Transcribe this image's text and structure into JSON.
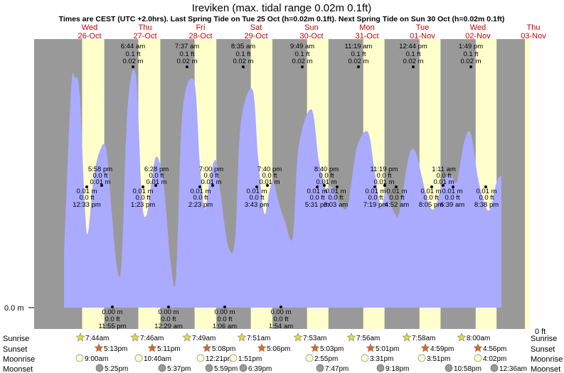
{
  "title": "Ireviken (max. tidal range 0.02m 0.1ft)",
  "subtitle": "Times are CEST (UTC +2.0hrs). Last Spring Tide on Tue 25 Oct (h=0.02m 0.1ft). Next Spring Tide on Sun 30 Oct (h=0.02m 0.1ft)",
  "colors": {
    "night": "#999999",
    "day": "#ffffcc",
    "tide": "#aaaaff",
    "day_header": "#cc0000",
    "sun_icon": "#dddd44",
    "sunset_icon": "#dd6622",
    "moonrise_icon": "#ffffcc",
    "moonset_icon": "#999999"
  },
  "axis": {
    "y_left_label": "0.0 m",
    "y_right_label": "0 ft"
  },
  "row_labels": [
    "Sunrise",
    "Sunset",
    "Moonrise",
    "Moonset"
  ],
  "days": [
    {
      "dow": "Wed",
      "date": "26-Oct"
    },
    {
      "dow": "Thu",
      "date": "27-Oct"
    },
    {
      "dow": "Fri",
      "date": "28-Oct"
    },
    {
      "dow": "Sat",
      "date": "29-Oct"
    },
    {
      "dow": "Sun",
      "date": "30-Oct"
    },
    {
      "dow": "Mon",
      "date": "31-Oct"
    },
    {
      "dow": "Tue",
      "date": "01-Nov"
    },
    {
      "dow": "Wed",
      "date": "02-Nov"
    },
    {
      "dow": "Thu",
      "date": "03-Nov"
    }
  ],
  "sunrise": [
    "7:44am",
    "7:46am",
    "7:49am",
    "7:51am",
    "7:53am",
    "7:56am",
    "7:58am",
    "8:00am"
  ],
  "sunset": [
    "5:13pm",
    "5:11pm",
    "5:08pm",
    "5:06pm",
    "5:03pm",
    "5:01pm",
    "4:59pm",
    "4:56pm"
  ],
  "moonrise": [
    "9:00am",
    "10:40am",
    "12:21pm",
    "1:51pm",
    "2:55pm",
    "3:31pm",
    "3:51pm",
    "4:02pm"
  ],
  "moonset": [
    "5:25pm",
    "5:37pm",
    "5:59pm",
    "6:39pm",
    "7:47pm",
    "9:18pm",
    "10:58pm",
    "12:36am"
  ],
  "chart_data": {
    "type": "area",
    "title": "Ireviken (max. tidal range 0.02m 0.1ft)",
    "x_unit": "hours after Wed 26-Oct 00:00 CEST",
    "ylim_m": [
      0,
      0.02
    ],
    "high_waters": [
      {
        "time": "6:44 am",
        "ft": "0.1 ft",
        "m": "0.02 m"
      },
      {
        "time": "7:37 am",
        "ft": "0.1 ft",
        "m": "0.02 m"
      },
      {
        "time": "8:35 am",
        "ft": "0.1 ft",
        "m": "0.02 m"
      },
      {
        "time": "9:49 am",
        "ft": "0.1 ft",
        "m": "0.02 m"
      },
      {
        "time": "11:19 am",
        "ft": "0.1 ft",
        "m": "0.02 m"
      },
      {
        "time": "12:44 pm",
        "ft": "0.1 ft",
        "m": "0.02 m"
      },
      {
        "time": "1:49 pm",
        "ft": "0.1 ft",
        "m": "0.02 m"
      }
    ],
    "secondary_highs": [
      {
        "time": "5:58 pm",
        "ft": "0.0 ft",
        "m": "0.01 m"
      },
      {
        "time": "6:28 pm",
        "ft": "0.0 ft",
        "m": "0.01 m"
      },
      {
        "time": "7:00 pm",
        "ft": "0.0 ft",
        "m": "0.01 m"
      },
      {
        "time": "7:40 pm",
        "ft": "0.0 ft",
        "m": "0.01 m"
      },
      {
        "time": "8:40 pm",
        "ft": "0.0 ft",
        "m": "0.01 m"
      },
      {
        "time": "11:19 pm",
        "ft": "0.0 ft",
        "m": "0.01 m"
      },
      {
        "time": "1:11 am",
        "ft": "0.0 ft",
        "m": "0.01 m"
      }
    ],
    "secondary_lows": [
      {
        "time": "12:33 pm",
        "ft": "0.0 ft",
        "m": "0.01 m"
      },
      {
        "time": "1:23 pm",
        "ft": "0.0 ft",
        "m": "0.01 m"
      },
      {
        "time": "2:23 pm",
        "ft": "0.0 ft",
        "m": "0.01 m"
      },
      {
        "time": "3:43 pm",
        "ft": "0.0 ft",
        "m": "0.01 m"
      },
      {
        "time": "5:31 pm",
        "ft": "0.0 ft",
        "m": "0.01 m"
      },
      {
        "time": "3:03 am",
        "ft": "0.0 ft",
        "m": "0.01 m"
      },
      {
        "time": "7:19 pm",
        "ft": "0.0 ft",
        "m": "0.01 m"
      },
      {
        "time": "4:52 am",
        "ft": "0.0 ft",
        "m": "0.01 m"
      },
      {
        "time": "8:05 pm",
        "ft": "0.0 ft",
        "m": "0.01 m"
      },
      {
        "time": "6:39 am",
        "ft": "0.0 ft",
        "m": "0.01 m"
      },
      {
        "time": "8:38 pm",
        "ft": "0.0 ft",
        "m": "0.01 m"
      }
    ],
    "low_waters": [
      {
        "time": "11:55 pm",
        "ft": "0.0 ft",
        "m": "0.00 m"
      },
      {
        "time": "12:29 am",
        "ft": "0.0 ft",
        "m": "0.00 m"
      },
      {
        "time": "1:06 am",
        "ft": "0.0 ft",
        "m": "0.00 m"
      },
      {
        "time": "1:54 am",
        "ft": "0.0 ft",
        "m": "0.00 m"
      }
    ],
    "tide_curve": [
      {
        "t": 0,
        "m": 0.0046
      },
      {
        "t": 3.0,
        "m": 0.0184
      },
      {
        "t": 4.7,
        "m": 0.0195
      },
      {
        "t": 6.7,
        "m": 0.0181
      },
      {
        "t": 9.0,
        "m": 0.0082
      },
      {
        "t": 10.3,
        "m": 0.0064
      },
      {
        "t": 12.55,
        "m": 0.0108
      },
      {
        "t": 15.0,
        "m": 0.0131
      },
      {
        "t": 17.97,
        "m": 0.0135
      },
      {
        "t": 20.5,
        "m": 0.0079
      },
      {
        "t": 22.8,
        "m": 0.0032
      },
      {
        "t": 24.7,
        "m": 0.0042
      },
      {
        "t": 27.2,
        "m": 0.0171
      },
      {
        "t": 30.73,
        "m": 0.0197
      },
      {
        "t": 33.2,
        "m": 0.0094
      },
      {
        "t": 35.2,
        "m": 0.0078
      },
      {
        "t": 37.38,
        "m": 0.0106
      },
      {
        "t": 39.5,
        "m": 0.0128
      },
      {
        "t": 42.47,
        "m": 0.0107
      },
      {
        "t": 45.6,
        "m": 0.0038
      },
      {
        "t": 47.92,
        "m": 0.0027
      },
      {
        "t": 50.6,
        "m": 0.0165
      },
      {
        "t": 55.62,
        "m": 0.0192
      },
      {
        "t": 58.0,
        "m": 0.0124
      },
      {
        "t": 60.1,
        "m": 0.0084
      },
      {
        "t": 62.38,
        "m": 0.0109
      },
      {
        "t": 64.8,
        "m": 0.0125
      },
      {
        "t": 67.0,
        "m": 0.0096
      },
      {
        "t": 70.1,
        "m": 0.0053
      },
      {
        "t": 73.1,
        "m": 0.0057
      },
      {
        "t": 75.5,
        "m": 0.0155
      },
      {
        "t": 80.58,
        "m": 0.0185
      },
      {
        "t": 83.0,
        "m": 0.0127
      },
      {
        "t": 85.6,
        "m": 0.008
      },
      {
        "t": 87.72,
        "m": 0.0098
      },
      {
        "t": 89.5,
        "m": 0.0107
      },
      {
        "t": 91.67,
        "m": 0.009
      },
      {
        "t": 94.5,
        "m": 0.0073
      },
      {
        "t": 97.8,
        "m": 0.006
      },
      {
        "t": 100.3,
        "m": 0.0136
      },
      {
        "t": 105.82,
        "m": 0.0168
      },
      {
        "t": 109.0,
        "m": 0.0124
      },
      {
        "t": 112.5,
        "m": 0.0097
      },
      {
        "t": 113.52,
        "m": 0.0103
      },
      {
        "t": 115.0,
        "m": 0.0101
      },
      {
        "t": 117.5,
        "m": 0.009
      },
      {
        "t": 120.9,
        "m": 0.0084
      },
      {
        "t": 123.0,
        "m": 0.0108
      },
      {
        "t": 125.5,
        "m": 0.0138
      },
      {
        "t": 129.9,
        "m": 0.0149
      },
      {
        "t": 132.5,
        "m": 0.012
      },
      {
        "t": 135.32,
        "m": 0.0087
      },
      {
        "t": 137.5,
        "m": 0.0098
      },
      {
        "t": 139.0,
        "m": 0.0092
      },
      {
        "t": 141.6,
        "m": 0.0079
      },
      {
        "t": 143.5,
        "m": 0.0082
      },
      {
        "t": 147.5,
        "m": 0.0129
      },
      {
        "t": 150.3,
        "m": 0.0132
      },
      {
        "t": 152.87,
        "m": 0.0112
      },
      {
        "t": 155.5,
        "m": 0.009
      },
      {
        "t": 158.4,
        "m": 0.0084
      },
      {
        "t": 162.0,
        "m": 0.0107
      },
      {
        "t": 165.5,
        "m": 0.0112
      },
      {
        "t": 168.0,
        "m": 0.0107
      },
      {
        "t": 171.0,
        "m": 0.014
      },
      {
        "t": 173.82,
        "m": 0.0148
      },
      {
        "t": 177.0,
        "m": 0.011
      },
      {
        "t": 179.5,
        "m": 0.009
      },
      {
        "t": 182.0,
        "m": 0.0083
      },
      {
        "t": 185.0,
        "m": 0.0107
      },
      {
        "t": 187.0,
        "m": 0.0112
      }
    ]
  }
}
